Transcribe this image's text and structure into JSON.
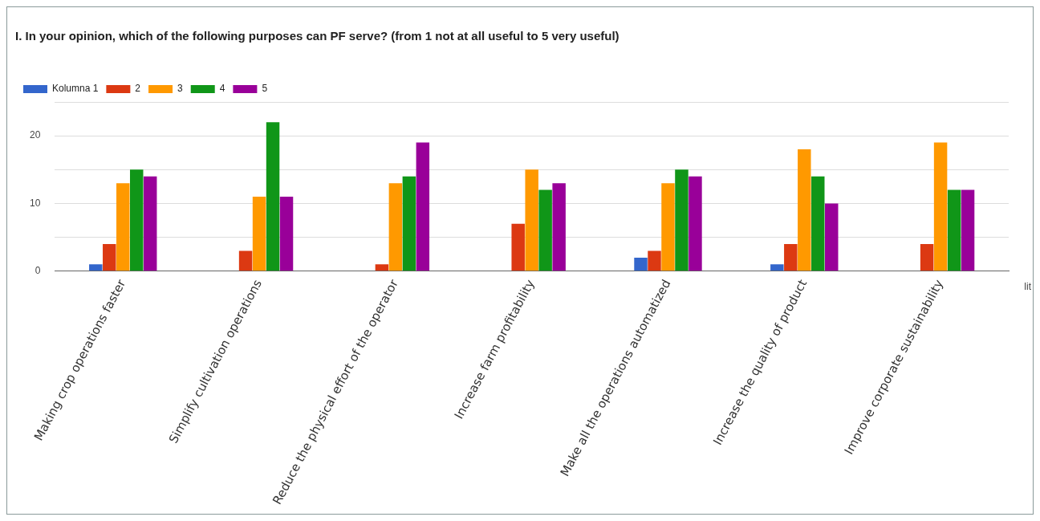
{
  "chart_data": {
    "type": "bar",
    "title": "I. In your opinion, which of the following purposes can PF serve? (from 1 not at all useful to 5 very useful)",
    "categories": [
      "Making crop operations faster",
      "Simplify cultivation operations",
      "Reduce the physical effort of the operator",
      "Increase farm profitability",
      "Make all the operations automatized",
      "Increase the quality of product",
      "Improve corporate sustainability"
    ],
    "series": [
      {
        "name": "Kolumna 1",
        "color": "#3366cc",
        "values": [
          1,
          0,
          0,
          0,
          2,
          1,
          0
        ]
      },
      {
        "name": "2",
        "color": "#dc3912",
        "values": [
          4,
          3,
          1,
          7,
          3,
          4,
          4
        ]
      },
      {
        "name": "3",
        "color": "#ff9900",
        "values": [
          13,
          11,
          13,
          15,
          13,
          18,
          19
        ]
      },
      {
        "name": "4",
        "color": "#109618",
        "values": [
          15,
          22,
          14,
          12,
          15,
          14,
          12
        ]
      },
      {
        "name": "5",
        "color": "#990099",
        "values": [
          14,
          11,
          19,
          13,
          14,
          10,
          12
        ]
      }
    ],
    "ylim": [
      0,
      25
    ],
    "yticks": [
      0,
      {
        "value": 5,
        "label": null
      },
      10,
      {
        "value": 15,
        "label": null
      },
      20,
      {
        "value": 25,
        "label": null
      }
    ],
    "grid": "y",
    "legend": "top left",
    "annotations": [
      "lit"
    ]
  }
}
